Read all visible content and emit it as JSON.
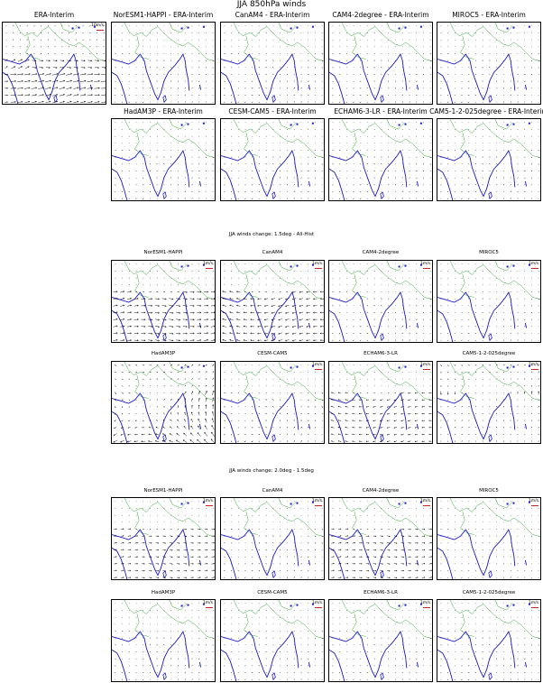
{
  "chart_data": {
    "type": "quiver",
    "title": "JJA 850hPa winds",
    "colors": {
      "coastline": "#1a1acc",
      "border": "#33aa33",
      "arrow": "#000000",
      "key": "#cc2222"
    },
    "sections": [
      {
        "title": "",
        "key_label": "10m/s",
        "panels": [
          {
            "label": "ERA-Interim",
            "pattern": "era",
            "scale": 1.0,
            "show_key": true
          },
          {
            "label": "NorESM1-HAPPI - ERA-Interim",
            "pattern": "diff_small",
            "scale": 0.45,
            "show_key": false
          },
          {
            "label": "CanAM4 - ERA-Interim",
            "pattern": "diff_small",
            "scale": 0.5,
            "show_key": false
          },
          {
            "label": "CAM4-2degree - ERA-Interim",
            "pattern": "diff_small",
            "scale": 0.45,
            "show_key": false
          },
          {
            "label": "MIROC5 - ERA-Interim",
            "pattern": "diff_small",
            "scale": 0.45,
            "show_key": false
          },
          {
            "label": "HadAM3P - ERA-Interim",
            "pattern": "diff_small",
            "scale": 0.45,
            "show_key": false
          },
          {
            "label": "CESM-CAM5 - ERA-Interim",
            "pattern": "diff_small",
            "scale": 0.45,
            "show_key": false
          },
          {
            "label": "ECHAM6-3-LR - ERA-Interim",
            "pattern": "diff_small",
            "scale": 0.45,
            "show_key": false
          },
          {
            "label": "CAM5-1-2-025degree - ERA-Interim",
            "pattern": "diff_small",
            "scale": 0.45,
            "show_key": false
          }
        ]
      },
      {
        "title": "JJA winds change: 1.5deg - All-Hist",
        "key_label": "1m/s",
        "panels": [
          {
            "label": "NorESM1-HAPPI",
            "pattern": "westerly",
            "scale": 0.8,
            "show_key": true
          },
          {
            "label": "CanAM4",
            "pattern": "easterly",
            "scale": 0.8,
            "show_key": true
          },
          {
            "label": "CAM4-2degree",
            "pattern": "diff_small",
            "scale": 0.5,
            "show_key": true
          },
          {
            "label": "MIROC5",
            "pattern": "diff_small",
            "scale": 0.4,
            "show_key": true
          },
          {
            "label": "HadAM3P",
            "pattern": "cyclone",
            "scale": 0.8,
            "show_key": false
          },
          {
            "label": "CESM-CAM5",
            "pattern": "diff_small",
            "scale": 0.6,
            "show_key": true
          },
          {
            "label": "ECHAM6-3-LR",
            "pattern": "easterly",
            "scale": 0.6,
            "show_key": true
          },
          {
            "label": "CAM5-1-2-025degree",
            "pattern": "north",
            "scale": 0.8,
            "show_key": true
          }
        ]
      },
      {
        "title": "JJA winds change: 2.0deg - 1.5deg",
        "key_label": "1m/s",
        "panels": [
          {
            "label": "NorESM1-HAPPI",
            "pattern": "westerly",
            "scale": 0.55,
            "show_key": true
          },
          {
            "label": "CanAM4",
            "pattern": "diff_small",
            "scale": 0.5,
            "show_key": true
          },
          {
            "label": "CAM4-2degree",
            "pattern": "westerly",
            "scale": 0.55,
            "show_key": true
          },
          {
            "label": "MIROC5",
            "pattern": "diff_small",
            "scale": 0.35,
            "show_key": true
          },
          {
            "label": "HadAM3P",
            "pattern": "diff_small",
            "scale": 0.45,
            "show_key": true
          },
          {
            "label": "CESM-CAM5",
            "pattern": "diff_small",
            "scale": 0.4,
            "show_key": true
          },
          {
            "label": "ECHAM6-3-LR",
            "pattern": "diff_small",
            "scale": 0.4,
            "show_key": true
          },
          {
            "label": "CAM5-1-2-025degree",
            "pattern": "diff_small",
            "scale": 0.45,
            "show_key": true
          }
        ]
      }
    ]
  }
}
